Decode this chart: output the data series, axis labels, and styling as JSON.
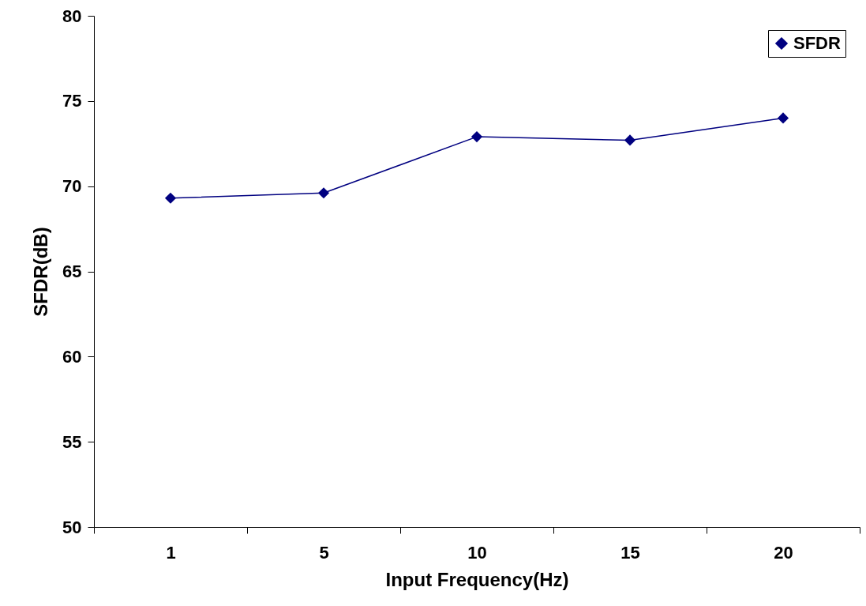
{
  "chart_data": {
    "type": "line",
    "xlabel": "Input Frequency(Hz)",
    "ylabel": "SFDR(dB)",
    "categories": [
      "1",
      "5",
      "10",
      "15",
      "20"
    ],
    "series": [
      {
        "name": "SFDR",
        "color": "#000080",
        "values": [
          69.3,
          69.6,
          72.9,
          72.7,
          74.0
        ]
      }
    ],
    "ylim": [
      50,
      80
    ],
    "yticks": [
      50,
      55,
      60,
      65,
      70,
      75,
      80
    ],
    "marker": "diamond",
    "line_style": "solid",
    "legend": "top right",
    "grid": false
  }
}
